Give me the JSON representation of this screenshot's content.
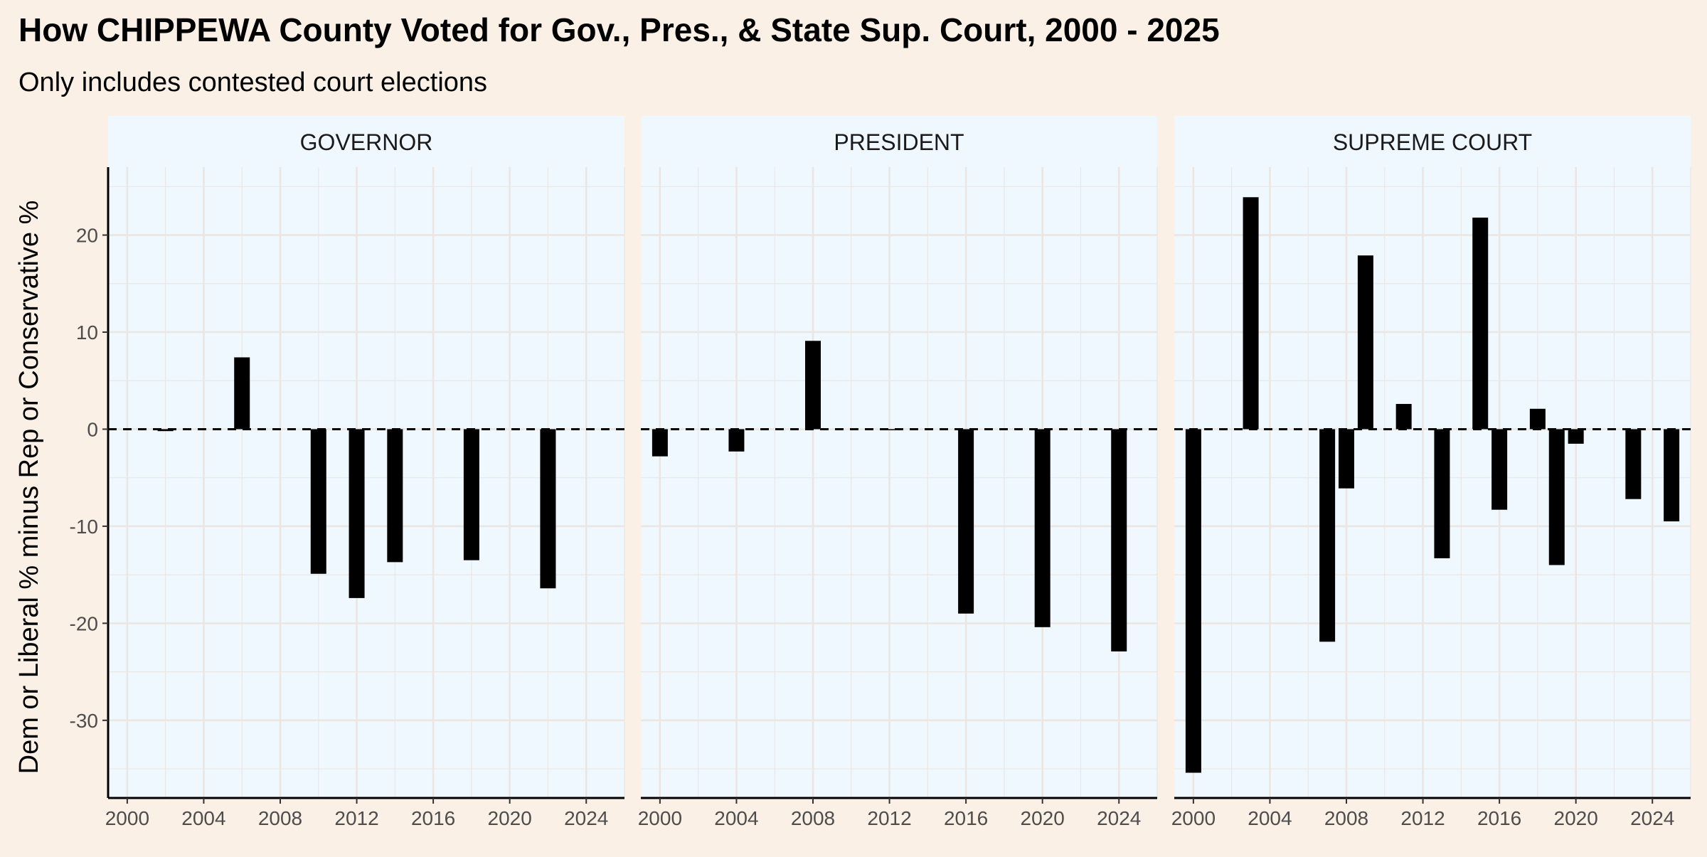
{
  "colors": {
    "page_background": "#faf0e6",
    "panel_background": "#f0f8ff",
    "strip_background": "#f0f8ff",
    "grid": "#ebe6e1",
    "bar": "#000000",
    "zero_line": "#000000"
  },
  "chart_data": {
    "type": "bar",
    "title": "How CHIPPEWA County Voted for Gov., Pres., & State Sup. Court, 2000 - 2025",
    "subtitle": "Only includes contested court elections",
    "xlabel": "",
    "ylabel": "Dem or Liberal % minus Rep or Conservative %",
    "xlim": [
      1999,
      2026
    ],
    "ylim": [
      -38,
      27
    ],
    "x_ticks": [
      2000,
      2004,
      2008,
      2012,
      2016,
      2020,
      2024
    ],
    "y_ticks": [
      -30,
      -20,
      -10,
      0,
      10,
      20
    ],
    "grid": true,
    "reference_line": {
      "y": 0,
      "style": "dashed"
    },
    "facets": [
      {
        "label": "GOVERNOR",
        "points": [
          {
            "x": 2002,
            "y": -0.2
          },
          {
            "x": 2006,
            "y": 7.4
          },
          {
            "x": 2010,
            "y": -14.9
          },
          {
            "x": 2012,
            "y": -17.4
          },
          {
            "x": 2014,
            "y": -13.7
          },
          {
            "x": 2018,
            "y": -13.5
          },
          {
            "x": 2022,
            "y": -16.4
          }
        ]
      },
      {
        "label": "PRESIDENT",
        "points": [
          {
            "x": 2000,
            "y": -2.8
          },
          {
            "x": 2004,
            "y": -2.3
          },
          {
            "x": 2008,
            "y": 9.1
          },
          {
            "x": 2012,
            "y": -0.1
          },
          {
            "x": 2016,
            "y": -19.0
          },
          {
            "x": 2020,
            "y": -20.4
          },
          {
            "x": 2024,
            "y": -22.9
          }
        ]
      },
      {
        "label": "SUPREME COURT",
        "points": [
          {
            "x": 2000,
            "y": -35.4
          },
          {
            "x": 2003,
            "y": 23.9
          },
          {
            "x": 2007,
            "y": -21.9
          },
          {
            "x": 2008,
            "y": -6.1
          },
          {
            "x": 2009,
            "y": 17.9
          },
          {
            "x": 2011,
            "y": 2.6
          },
          {
            "x": 2013,
            "y": -13.3
          },
          {
            "x": 2015,
            "y": 21.8
          },
          {
            "x": 2016,
            "y": -8.3
          },
          {
            "x": 2018,
            "y": 2.1
          },
          {
            "x": 2019,
            "y": -14.0
          },
          {
            "x": 2020,
            "y": -1.5
          },
          {
            "x": 2023,
            "y": -7.2
          },
          {
            "x": 2025,
            "y": -9.5
          }
        ]
      }
    ]
  }
}
